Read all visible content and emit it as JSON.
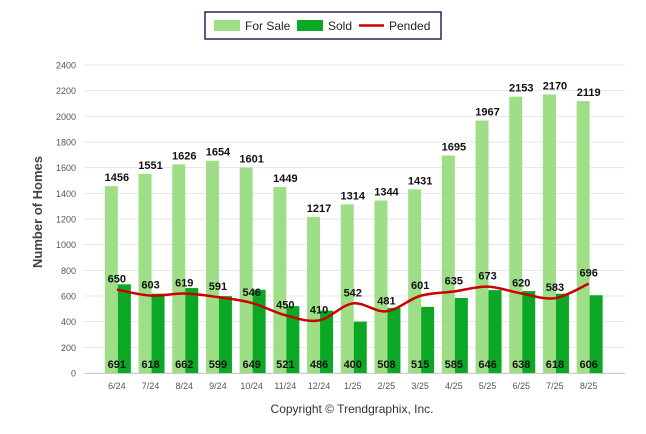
{
  "chart_data": {
    "type": "bar",
    "title": "",
    "xlabel": "",
    "ylabel": "Number of Homes",
    "ylim": [
      0,
      2400
    ],
    "yticks": [
      0,
      200,
      400,
      600,
      800,
      1000,
      1200,
      1400,
      1600,
      1800,
      2000,
      2200,
      2400
    ],
    "grid": true,
    "legend_position": "top-center",
    "categories": [
      "6/24",
      "7/24",
      "8/24",
      "9/24",
      "10/24",
      "11/24",
      "12/24",
      "1/25",
      "2/25",
      "3/25",
      "4/25",
      "5/25",
      "6/25",
      "7/25",
      "8/25"
    ],
    "series": [
      {
        "name": "For Sale",
        "type": "bar",
        "color": "#9ede87",
        "values": [
          1456,
          1551,
          1626,
          1654,
          1601,
          1449,
          1217,
          1314,
          1344,
          1431,
          1695,
          1967,
          2153,
          2170,
          2119
        ]
      },
      {
        "name": "Sold",
        "type": "bar",
        "color": "#0aa824",
        "values": [
          691,
          618,
          662,
          599,
          649,
          521,
          486,
          400,
          508,
          515,
          585,
          646,
          638,
          618,
          606
        ]
      },
      {
        "name": "Pended",
        "type": "line",
        "color": "#cc0000",
        "values": [
          650,
          603,
          619,
          591,
          546,
          450,
          410,
          542,
          481,
          601,
          635,
          673,
          620,
          583,
          696
        ]
      }
    ]
  },
  "footer": {
    "copyright": "Copyright © Trendgraphix, Inc."
  }
}
